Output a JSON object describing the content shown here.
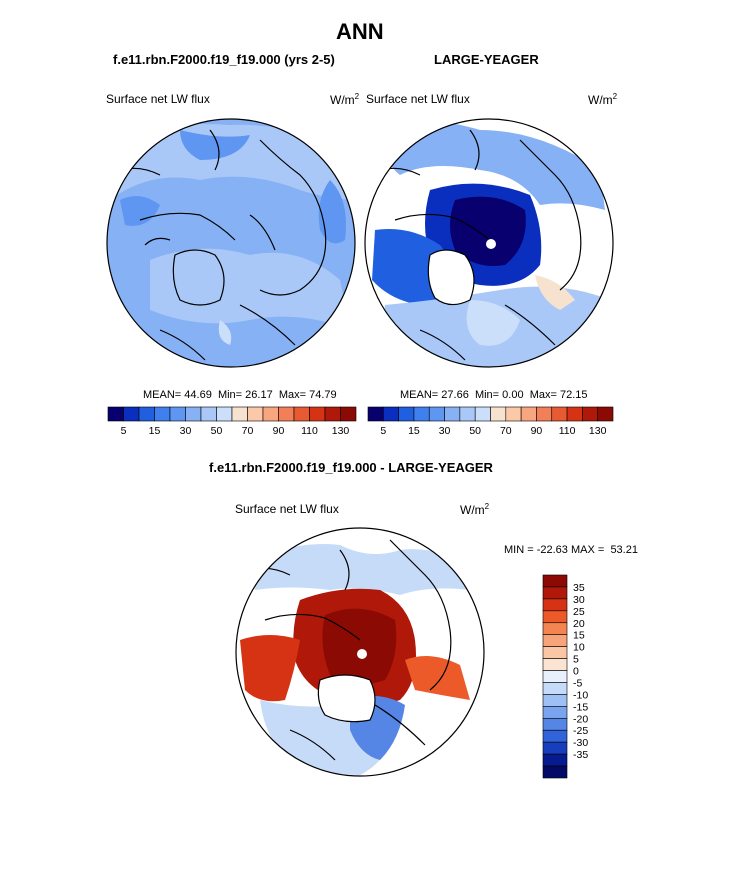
{
  "figure": {
    "title": "ANN",
    "case_a": "f.e11.rbn.F2000.f19_f19.000 (yrs 2-5)",
    "case_b": "LARGE-YEAGER",
    "diff_title": "f.e11.rbn.F2000.f19_f19.000 - LARGE-YEAGER"
  },
  "colors": {
    "sequential": [
      "#08006e",
      "#0a2fbf",
      "#1f5fe0",
      "#3f7fee",
      "#5f96f2",
      "#86b1f5",
      "#a9c8f8",
      "#ccdffa",
      "#f7e2cf",
      "#fbc9a8",
      "#f8a680",
      "#f27f58",
      "#e85a32",
      "#d63314",
      "#b0180a",
      "#8b0a04"
    ],
    "diverging": [
      "#8b0a04",
      "#b0180a",
      "#d63314",
      "#ec5a2a",
      "#f48450",
      "#f7a47a",
      "#fbc6a6",
      "#fce4d2",
      "#e8f0fb",
      "#c6dbf8",
      "#9fc0f4",
      "#7aa4ee",
      "#5586e6",
      "#3264d9",
      "#173fbd",
      "#061b8f",
      "#030a66"
    ],
    "land_outline": "#000000",
    "sea_ice_white": "#ffffff"
  },
  "chart_data": [
    {
      "type": "heatmap",
      "projection": "north-polar-stereographic",
      "panel": "top-left",
      "left_label": "Surface net LW flux",
      "units_label": "W/m",
      "units_power": "2",
      "stats": {
        "mean_label": "MEAN=",
        "mean": "44.69",
        "min_label": "Min=",
        "min": "26.17",
        "max_label": "Max=",
        "max": "74.79"
      },
      "colorbar": {
        "orientation": "horizontal",
        "tick_labels": [
          "5",
          "15",
          "30",
          "50",
          "70",
          "90",
          "110",
          "130"
        ]
      }
    },
    {
      "type": "heatmap",
      "projection": "north-polar-stereographic",
      "panel": "top-right",
      "left_label": "Surface net LW flux",
      "units_label": "W/m",
      "units_power": "2",
      "stats": {
        "mean_label": "MEAN=",
        "mean": "27.66",
        "min_label": "Min=",
        "min": "0.00",
        "max_label": "Max=",
        "max": "72.15"
      },
      "colorbar": {
        "orientation": "horizontal",
        "tick_labels": [
          "5",
          "15",
          "30",
          "50",
          "70",
          "90",
          "110",
          "130"
        ]
      }
    },
    {
      "type": "heatmap",
      "projection": "north-polar-stereographic",
      "panel": "bottom-difference",
      "left_label": "Surface net LW flux",
      "units_label": "W/m",
      "units_power": "2",
      "minmax": {
        "min_label": "MIN =",
        "min": "-22.63",
        "max_label": "MAX =",
        "max": "53.21"
      },
      "colorbar": {
        "orientation": "vertical",
        "tick_labels": [
          "35",
          "30",
          "25",
          "20",
          "15",
          "10",
          "5",
          "0",
          "-5",
          "-10",
          "-15",
          "-20",
          "-25",
          "-30",
          "-35"
        ]
      }
    }
  ]
}
